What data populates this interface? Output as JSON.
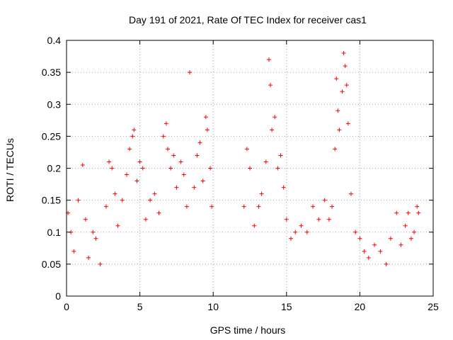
{
  "chart_data": {
    "type": "scatter",
    "title": "Day 191 of 2021, Rate Of TEC Index for receiver cas1",
    "xlabel": "GPS time / hours",
    "ylabel": "ROTI / TECUs",
    "xlim": [
      0,
      25
    ],
    "ylim": [
      0,
      0.4
    ],
    "xticks": [
      0,
      5,
      10,
      15,
      20,
      25
    ],
    "xtick_labels": [
      "0",
      "5",
      "10",
      "15",
      "20",
      "25"
    ],
    "yticks": [
      0,
      0.05,
      0.1,
      0.15,
      0.2,
      0.25,
      0.3,
      0.35,
      0.4
    ],
    "ytick_labels": [
      "0",
      "0.05",
      "0.1",
      "0.15",
      "0.2",
      "0.25",
      "0.3",
      "0.35",
      "0.4"
    ],
    "grid": true,
    "marker": "plus",
    "color": "#ff0000",
    "series": [
      {
        "name": "ROTI",
        "points": [
          [
            0.1,
            0.13
          ],
          [
            0.3,
            0.1
          ],
          [
            0.5,
            0.07
          ],
          [
            0.8,
            0.15
          ],
          [
            1.1,
            0.205
          ],
          [
            1.3,
            0.12
          ],
          [
            1.5,
            0.06
          ],
          [
            1.8,
            0.1
          ],
          [
            2.0,
            0.09
          ],
          [
            2.3,
            0.05
          ],
          [
            2.7,
            0.14
          ],
          [
            2.9,
            0.21
          ],
          [
            3.1,
            0.2
          ],
          [
            3.3,
            0.16
          ],
          [
            3.5,
            0.11
          ],
          [
            3.8,
            0.15
          ],
          [
            4.1,
            0.19
          ],
          [
            4.3,
            0.23
          ],
          [
            4.5,
            0.25
          ],
          [
            4.6,
            0.26
          ],
          [
            4.8,
            0.18
          ],
          [
            5.0,
            0.21
          ],
          [
            5.2,
            0.2
          ],
          [
            5.4,
            0.12
          ],
          [
            5.7,
            0.15
          ],
          [
            6.0,
            0.16
          ],
          [
            6.3,
            0.13
          ],
          [
            6.6,
            0.25
          ],
          [
            6.8,
            0.27
          ],
          [
            6.9,
            0.23
          ],
          [
            7.1,
            0.2
          ],
          [
            7.3,
            0.22
          ],
          [
            7.5,
            0.17
          ],
          [
            7.8,
            0.21
          ],
          [
            8.0,
            0.19
          ],
          [
            8.2,
            0.14
          ],
          [
            8.4,
            0.35
          ],
          [
            8.7,
            0.17
          ],
          [
            8.9,
            0.22
          ],
          [
            9.1,
            0.24
          ],
          [
            9.3,
            0.18
          ],
          [
            9.5,
            0.28
          ],
          [
            9.6,
            0.26
          ],
          [
            9.8,
            0.2
          ],
          [
            9.9,
            0.14
          ],
          [
            12.1,
            0.14
          ],
          [
            12.3,
            0.23
          ],
          [
            12.5,
            0.2
          ],
          [
            12.8,
            0.11
          ],
          [
            13.1,
            0.14
          ],
          [
            13.3,
            0.16
          ],
          [
            13.6,
            0.21
          ],
          [
            13.8,
            0.37
          ],
          [
            13.9,
            0.33
          ],
          [
            14.0,
            0.26
          ],
          [
            14.2,
            0.28
          ],
          [
            14.4,
            0.2
          ],
          [
            14.6,
            0.22
          ],
          [
            14.8,
            0.17
          ],
          [
            15.0,
            0.12
          ],
          [
            15.3,
            0.09
          ],
          [
            15.6,
            0.1
          ],
          [
            16.0,
            0.11
          ],
          [
            16.4,
            0.1
          ],
          [
            16.8,
            0.14
          ],
          [
            17.2,
            0.12
          ],
          [
            17.6,
            0.15
          ],
          [
            17.9,
            0.12
          ],
          [
            18.1,
            0.14
          ],
          [
            18.3,
            0.23
          ],
          [
            18.4,
            0.34
          ],
          [
            18.5,
            0.29
          ],
          [
            18.6,
            0.26
          ],
          [
            18.8,
            0.32
          ],
          [
            18.9,
            0.38
          ],
          [
            19.0,
            0.36
          ],
          [
            19.1,
            0.33
          ],
          [
            19.2,
            0.27
          ],
          [
            19.4,
            0.16
          ],
          [
            19.7,
            0.1
          ],
          [
            20.0,
            0.09
          ],
          [
            20.3,
            0.07
          ],
          [
            20.6,
            0.06
          ],
          [
            21.0,
            0.08
          ],
          [
            21.4,
            0.07
          ],
          [
            21.8,
            0.05
          ],
          [
            22.1,
            0.09
          ],
          [
            22.5,
            0.13
          ],
          [
            22.8,
            0.08
          ],
          [
            23.1,
            0.11
          ],
          [
            23.3,
            0.13
          ],
          [
            23.5,
            0.09
          ],
          [
            23.7,
            0.1
          ],
          [
            23.9,
            0.14
          ],
          [
            24.0,
            0.13
          ]
        ]
      }
    ]
  }
}
